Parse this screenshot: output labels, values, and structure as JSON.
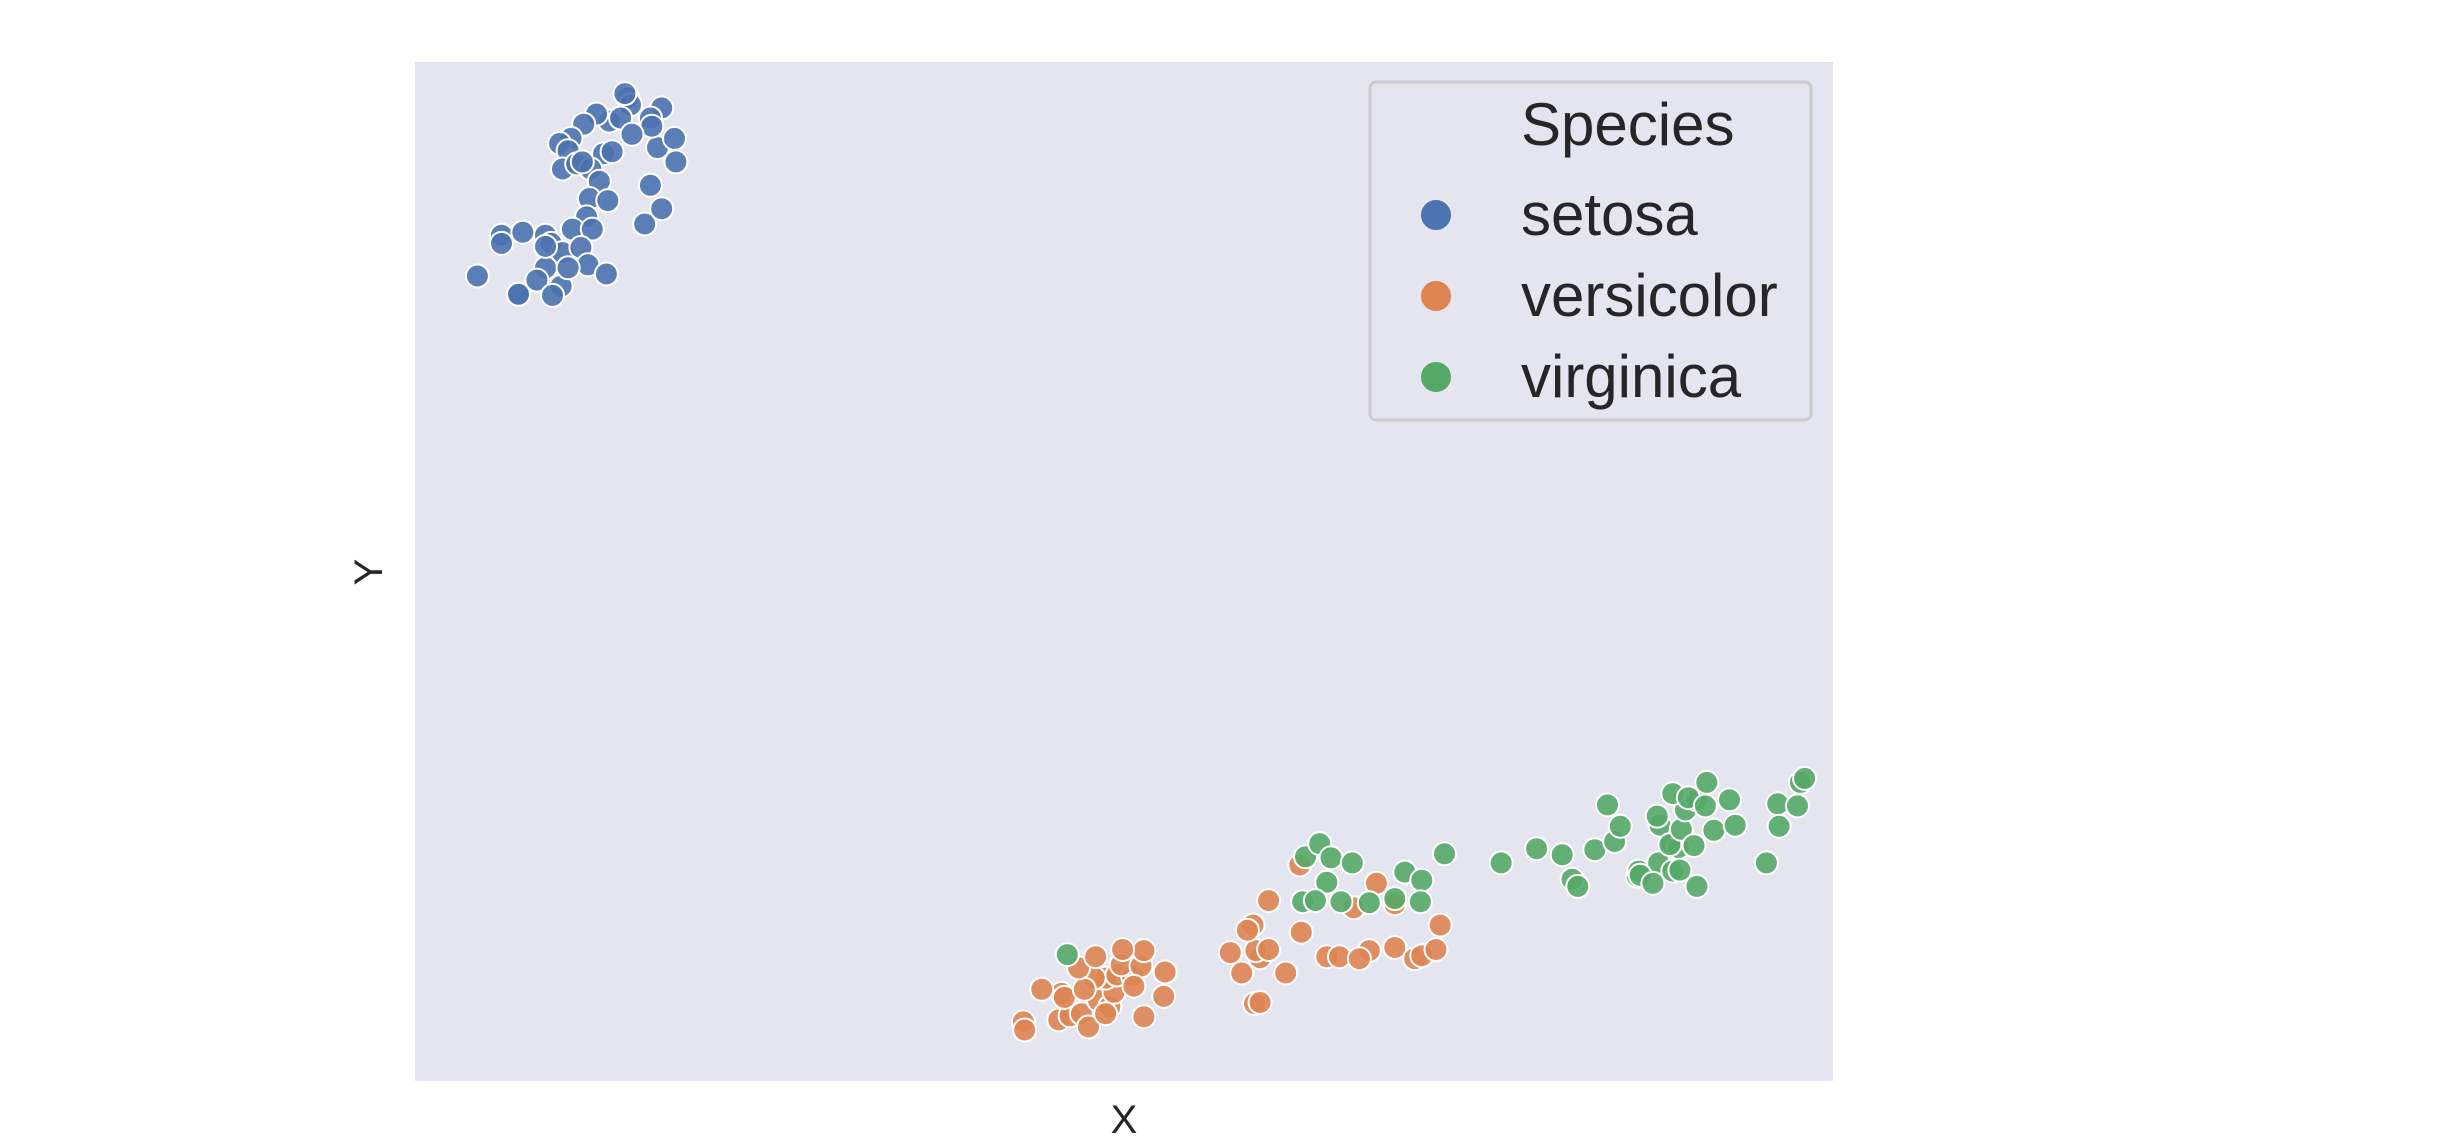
{
  "chart_data": {
    "type": "scatter",
    "title": "",
    "xlabel": "X",
    "ylabel": "Y",
    "xlim": [
      0,
      100
    ],
    "ylim": [
      0,
      100
    ],
    "grid": false,
    "background": "#E5E5EF",
    "legend": {
      "title": "Species",
      "position": "top-right"
    },
    "series": [
      {
        "name": "setosa",
        "color": "#4C72B0",
        "points": [
          [
            15.0,
            96.5
          ],
          [
            15.2,
            95.8
          ],
          [
            14.8,
            96.9
          ],
          [
            17.4,
            95.5
          ],
          [
            16.6,
            94.5
          ],
          [
            13.7,
            94.2
          ],
          [
            12.8,
            94.9
          ],
          [
            11.9,
            93.9
          ],
          [
            13.3,
            91.0
          ],
          [
            11.0,
            92.5
          ],
          [
            10.2,
            92.0
          ],
          [
            10.8,
            91.3
          ],
          [
            10.4,
            89.5
          ],
          [
            11.4,
            90.0
          ],
          [
            12.4,
            89.5
          ],
          [
            13.0,
            88.3
          ],
          [
            12.3,
            86.6
          ],
          [
            13.6,
            86.4
          ],
          [
            12.1,
            84.8
          ],
          [
            11.1,
            83.6
          ],
          [
            12.5,
            83.6
          ],
          [
            9.2,
            83.0
          ],
          [
            9.6,
            82.2
          ],
          [
            10.4,
            81.3
          ],
          [
            11.7,
            81.8
          ],
          [
            12.2,
            80.1
          ],
          [
            9.2,
            79.8
          ],
          [
            8.6,
            78.6
          ],
          [
            7.3,
            77.2
          ],
          [
            10.3,
            78.0
          ],
          [
            10.8,
            79.8
          ],
          [
            9.7,
            77.1
          ],
          [
            4.4,
            79.0
          ],
          [
            6.1,
            83.0
          ],
          [
            7.6,
            83.3
          ],
          [
            6.1,
            82.2
          ],
          [
            7.3,
            77.2
          ],
          [
            9.2,
            81.9
          ],
          [
            13.5,
            79.2
          ],
          [
            16.2,
            84.1
          ],
          [
            17.4,
            85.6
          ],
          [
            16.6,
            87.9
          ],
          [
            18.4,
            90.2
          ],
          [
            17.1,
            91.6
          ],
          [
            18.3,
            92.5
          ],
          [
            16.7,
            93.7
          ],
          [
            14.5,
            94.5
          ],
          [
            15.3,
            92.9
          ],
          [
            13.9,
            91.2
          ],
          [
            11.8,
            90.2
          ]
        ]
      },
      {
        "name": "versicolor",
        "color": "#DD8452",
        "points": [
          [
            42.9,
            5.8
          ],
          [
            43.0,
            5.0
          ],
          [
            45.6,
            8.6
          ],
          [
            45.4,
            6.0
          ],
          [
            46.2,
            6.4
          ],
          [
            47.0,
            6.6
          ],
          [
            47.5,
            5.3
          ],
          [
            48.2,
            7.9
          ],
          [
            49.0,
            7.3
          ],
          [
            48.7,
            6.6
          ],
          [
            49.3,
            8.7
          ],
          [
            48.7,
            10.1
          ],
          [
            49.5,
            10.4
          ],
          [
            50.6,
            10.3
          ],
          [
            52.8,
            8.3
          ],
          [
            49.8,
            11.4
          ],
          [
            51.2,
            11.3
          ],
          [
            51.4,
            12.8
          ],
          [
            49.9,
            12.9
          ],
          [
            47.9,
            10.1
          ],
          [
            45.8,
            8.2
          ],
          [
            47.2,
            9.0
          ],
          [
            44.2,
            9.0
          ],
          [
            46.8,
            11.1
          ],
          [
            48.0,
            12.2
          ],
          [
            51.4,
            6.3
          ],
          [
            50.7,
            9.3
          ],
          [
            52.9,
            10.7
          ],
          [
            59.2,
            7.6
          ],
          [
            59.6,
            7.7
          ],
          [
            61.4,
            10.6
          ],
          [
            59.6,
            12.1
          ],
          [
            59.3,
            12.8
          ],
          [
            60.2,
            12.9
          ],
          [
            59.1,
            15.3
          ],
          [
            57.5,
            12.6
          ],
          [
            58.3,
            10.6
          ],
          [
            62.5,
            14.6
          ],
          [
            64.3,
            12.2
          ],
          [
            65.2,
            12.2
          ],
          [
            67.3,
            12.8
          ],
          [
            66.6,
            12.0
          ],
          [
            69.1,
            13.1
          ],
          [
            70.5,
            12.0
          ],
          [
            71.0,
            12.3
          ],
          [
            72.0,
            12.9
          ],
          [
            72.3,
            15.3
          ],
          [
            66.2,
            17.0
          ],
          [
            69.1,
            17.4
          ],
          [
            67.8,
            19.4
          ],
          [
            60.2,
            17.7
          ],
          [
            62.4,
            21.2
          ],
          [
            58.7,
            14.8
          ]
        ]
      },
      {
        "name": "virginica",
        "color": "#55A868",
        "points": [
          [
            46.0,
            12.4
          ],
          [
            62.8,
            22.0
          ],
          [
            63.8,
            23.3
          ],
          [
            64.6,
            21.9
          ],
          [
            64.3,
            19.5
          ],
          [
            62.6,
            17.6
          ],
          [
            63.5,
            17.7
          ],
          [
            65.3,
            17.6
          ],
          [
            67.3,
            17.5
          ],
          [
            69.1,
            17.9
          ],
          [
            69.8,
            20.5
          ],
          [
            71.0,
            19.7
          ],
          [
            70.9,
            17.6
          ],
          [
            66.1,
            21.4
          ],
          [
            72.6,
            22.3
          ],
          [
            76.6,
            21.4
          ],
          [
            79.1,
            22.8
          ],
          [
            80.9,
            22.2
          ],
          [
            81.6,
            19.8
          ],
          [
            82.0,
            19.1
          ],
          [
            83.2,
            22.7
          ],
          [
            84.6,
            23.5
          ],
          [
            85.0,
            25.0
          ],
          [
            84.1,
            27.1
          ],
          [
            86.2,
            20.1
          ],
          [
            86.3,
            20.6
          ],
          [
            87.7,
            21.4
          ],
          [
            88.6,
            23.4
          ],
          [
            89.1,
            22.9
          ],
          [
            87.8,
            25.1
          ],
          [
            86.4,
            20.2
          ],
          [
            87.3,
            19.4
          ],
          [
            88.5,
            23.2
          ],
          [
            87.6,
            26.0
          ],
          [
            89.3,
            24.7
          ],
          [
            90.2,
            23.1
          ],
          [
            91.6,
            24.6
          ],
          [
            89.6,
            26.6
          ],
          [
            88.7,
            28.2
          ],
          [
            90.4,
            27.6
          ],
          [
            89.8,
            27.8
          ],
          [
            91.1,
            29.3
          ],
          [
            91.0,
            27.0
          ],
          [
            92.7,
            27.6
          ],
          [
            96.1,
            27.2
          ],
          [
            97.5,
            27.0
          ],
          [
            97.7,
            29.3
          ],
          [
            98.0,
            29.7
          ],
          [
            93.1,
            25.1
          ],
          [
            96.2,
            25.0
          ],
          [
            95.3,
            21.4
          ],
          [
            90.4,
            19.1
          ],
          [
            88.7,
            20.6
          ],
          [
            89.2,
            20.7
          ]
        ]
      }
    ]
  }
}
